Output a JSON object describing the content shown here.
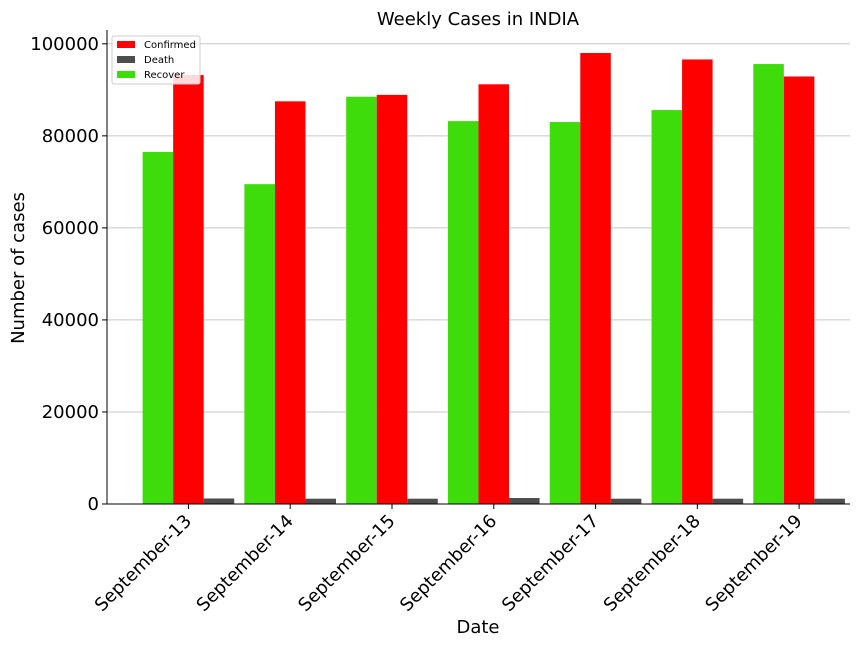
{
  "chart_data": {
    "type": "bar",
    "title": "Weekly Cases in INDIA",
    "xlabel": "Date",
    "ylabel": "Number of cases",
    "categories": [
      "September-13",
      "September-14",
      "September-15",
      "September-16",
      "September-17",
      "September-18",
      "September-19"
    ],
    "series": [
      {
        "name": "Recover",
        "color": "#3ddc0a",
        "values": [
          76500,
          69500,
          88500,
          83200,
          83000,
          85600,
          95600
        ]
      },
      {
        "name": "Confirmed",
        "color": "#ff0000",
        "values": [
          93200,
          87500,
          88900,
          91200,
          98000,
          96600,
          92900
        ]
      },
      {
        "name": "Death",
        "color": "#4d4d4d",
        "values": [
          1200,
          1150,
          1150,
          1300,
          1150,
          1150,
          1150
        ]
      }
    ],
    "legend_order": [
      "Confirmed",
      "Death",
      "Recover"
    ],
    "legend_position": "top-left",
    "ylim": [
      0,
      103000
    ],
    "yticks": [
      0,
      20000,
      40000,
      60000,
      80000,
      100000
    ],
    "grid": "horizontal"
  }
}
